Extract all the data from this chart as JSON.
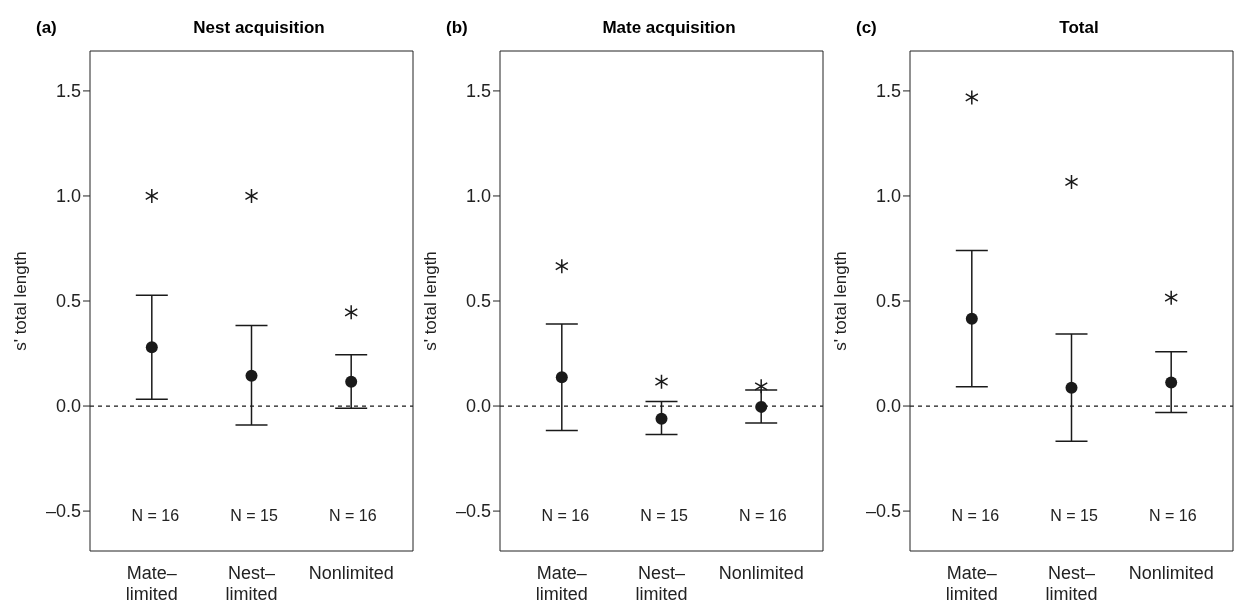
{
  "chart_data": [
    {
      "type": "scatter",
      "title": "Nest acquisition",
      "ylabel": "s' total length",
      "categories": [
        "Mate–limited",
        "Nest–limited",
        "Nonlimited"
      ],
      "series": [
        {
          "color": "#1a1a1a",
          "marker": "circle",
          "values": [
            0.28,
            0.144,
            0.116
          ],
          "errors": [
            [
              0.032,
              0.527
            ],
            [
              -0.09,
              0.383
            ],
            [
              -0.011,
              0.244
            ]
          ]
        },
        {
          "color": "#1a1a1a",
          "marker": "cross",
          "values": [
            1.0,
            1.0,
            0.446
          ]
        }
      ],
      "ylim": [
        -0.69,
        1.69
      ],
      "yticks": [
        {
          "value": -0.5,
          "label": "–0.5"
        },
        {
          "value": 0,
          "label": "0.0"
        },
        {
          "value": 0.5,
          "label": "0.5"
        },
        {
          "value": 1,
          "label": "1.0"
        },
        {
          "value": 1.5,
          "label": "1.5"
        }
      ],
      "ref_lines": [
        {
          "axis": "y",
          "value": 0,
          "line_style": "dashed",
          "color": "#1a1a1a"
        }
      ],
      "annotations": [
        "(a)",
        "N = 16",
        "N = 15",
        "N = 16"
      ],
      "grid": false,
      "legend": false
    },
    {
      "type": "scatter",
      "title": "Mate acquisition",
      "ylabel": "s' total length",
      "categories": [
        "Mate–limited",
        "Nest–limited",
        "Nonlimited"
      ],
      "series": [
        {
          "color": "#1a1a1a",
          "marker": "circle",
          "values": [
            0.137,
            -0.06,
            -0.004
          ],
          "errors": [
            [
              -0.117,
              0.39
            ],
            [
              -0.135,
              0.022
            ],
            [
              -0.081,
              0.076
            ]
          ]
        },
        {
          "color": "#1a1a1a",
          "marker": "cross",
          "values": [
            0.666,
            0.116,
            0.094
          ]
        }
      ],
      "ylim": [
        -0.69,
        1.69
      ],
      "yticks": [
        {
          "value": -0.5,
          "label": "–0.5"
        },
        {
          "value": 0,
          "label": "0.0"
        },
        {
          "value": 0.5,
          "label": "0.5"
        },
        {
          "value": 1,
          "label": "1.0"
        },
        {
          "value": 1.5,
          "label": "1.5"
        }
      ],
      "ref_lines": [
        {
          "axis": "y",
          "value": 0,
          "line_style": "dashed",
          "color": "#1a1a1a"
        }
      ],
      "annotations": [
        "(b)",
        "N = 16",
        "N = 15",
        "N = 16"
      ],
      "grid": false,
      "legend": false
    },
    {
      "type": "scatter",
      "title": "Total",
      "ylabel": "s' total length",
      "categories": [
        "Mate–limited",
        "Nest–limited",
        "Nonlimited"
      ],
      "series": [
        {
          "color": "#1a1a1a",
          "marker": "circle",
          "values": [
            0.415,
            0.087,
            0.112
          ],
          "errors": [
            [
              0.092,
              0.74
            ],
            [
              -0.168,
              0.343
            ],
            [
              -0.031,
              0.258
            ]
          ]
        },
        {
          "color": "#1a1a1a",
          "marker": "cross",
          "values": [
            1.469,
            1.067,
            0.516
          ]
        }
      ],
      "ylim": [
        -0.69,
        1.69
      ],
      "yticks": [
        {
          "value": -0.5,
          "label": "–0.5"
        },
        {
          "value": 0,
          "label": "0.0"
        },
        {
          "value": 0.5,
          "label": "0.5"
        },
        {
          "value": 1,
          "label": "1.0"
        },
        {
          "value": 1.5,
          "label": "1.5"
        }
      ],
      "ref_lines": [
        {
          "axis": "y",
          "value": 0,
          "line_style": "dashed",
          "color": "#1a1a1a"
        }
      ],
      "annotations": [
        "(c)",
        "N = 16",
        "N = 15",
        "N = 16"
      ],
      "grid": false,
      "legend": false
    }
  ]
}
